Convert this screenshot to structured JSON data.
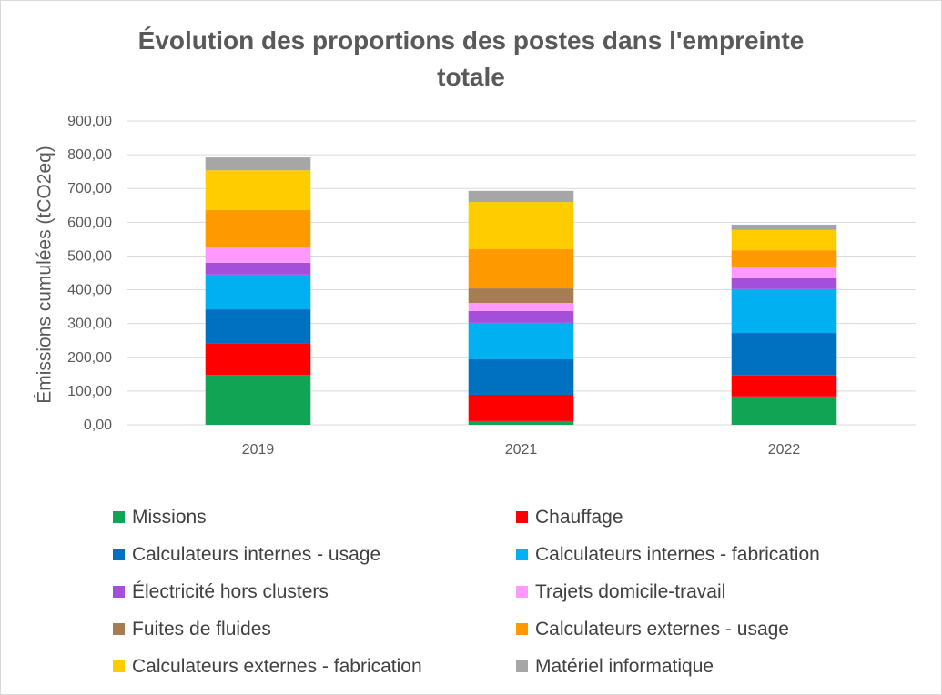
{
  "chart_data": {
    "type": "bar",
    "stacked": true,
    "title": "Évolution des proportions des postes dans l'empreinte totale",
    "xlabel": "",
    "ylabel": "Émissions cumulées (tCO2eq)",
    "ylim": [
      0,
      900
    ],
    "yticks": [
      0,
      100,
      200,
      300,
      400,
      500,
      600,
      700,
      800,
      900
    ],
    "ytick_labels": [
      "0,00",
      "100,00",
      "200,00",
      "300,00",
      "400,00",
      "500,00",
      "600,00",
      "700,00",
      "800,00",
      "900,00"
    ],
    "grid": true,
    "legend_position": "bottom",
    "categories": [
      "2019",
      "2021",
      "2022"
    ],
    "series": [
      {
        "name": "Missions",
        "color": "#12a455",
        "values": [
          148,
          11,
          84
        ]
      },
      {
        "name": "Chauffage",
        "color": "#ff0000",
        "values": [
          92,
          78,
          62
        ]
      },
      {
        "name": "Calculateurs internes - usage",
        "color": "#0070c0",
        "values": [
          102,
          105,
          126
        ]
      },
      {
        "name": "Calculateurs internes - fabrication",
        "color": "#00b0f0",
        "values": [
          103,
          108,
          130
        ]
      },
      {
        "name": "Électricité hors clusters",
        "color": "#a44fd9",
        "values": [
          35,
          35,
          32
        ]
      },
      {
        "name": "Trajets domicile-travail",
        "color": "#ff99ff",
        "values": [
          45,
          24,
          32
        ]
      },
      {
        "name": "Fuites de fluides",
        "color": "#a67c52",
        "values": [
          0,
          43,
          0
        ]
      },
      {
        "name": "Calculateurs externes - usage",
        "color": "#ff9900",
        "values": [
          111,
          116,
          51
        ]
      },
      {
        "name": "Calculateurs externes - fabrication",
        "color": "#ffcc00",
        "values": [
          118,
          140,
          60
        ]
      },
      {
        "name": "Matériel informatique",
        "color": "#a6a6a6",
        "values": [
          38,
          33,
          16
        ]
      }
    ]
  }
}
